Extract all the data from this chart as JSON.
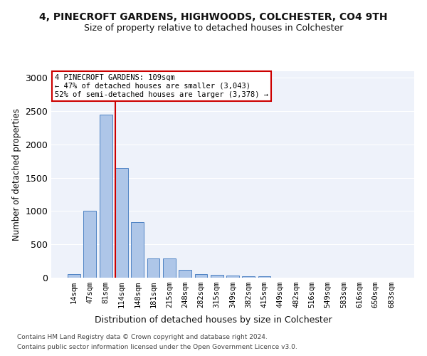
{
  "title_line1": "4, PINECROFT GARDENS, HIGHWOODS, COLCHESTER, CO4 9TH",
  "title_line2": "Size of property relative to detached houses in Colchester",
  "xlabel": "Distribution of detached houses by size in Colchester",
  "ylabel": "Number of detached properties",
  "bar_labels": [
    "14sqm",
    "47sqm",
    "81sqm",
    "114sqm",
    "148sqm",
    "181sqm",
    "215sqm",
    "248sqm",
    "282sqm",
    "315sqm",
    "349sqm",
    "382sqm",
    "415sqm",
    "449sqm",
    "482sqm",
    "516sqm",
    "549sqm",
    "583sqm",
    "616sqm",
    "650sqm",
    "683sqm"
  ],
  "bar_values": [
    55,
    1000,
    2450,
    1650,
    830,
    290,
    285,
    115,
    55,
    45,
    35,
    25,
    25,
    0,
    0,
    0,
    0,
    0,
    0,
    0,
    0
  ],
  "bar_color": "#aec6e8",
  "bar_edgecolor": "#4f83c4",
  "vline_bar_index": 2.6,
  "annotation_text": "4 PINECROFT GARDENS: 109sqm\n← 47% of detached houses are smaller (3,043)\n52% of semi-detached houses are larger (3,378) →",
  "annotation_box_color": "#ffffff",
  "annotation_box_edgecolor": "#cc0000",
  "vline_color": "#cc0000",
  "ylim": [
    0,
    3100
  ],
  "yticks": [
    0,
    500,
    1000,
    1500,
    2000,
    2500,
    3000
  ],
  "footer_line1": "Contains HM Land Registry data © Crown copyright and database right 2024.",
  "footer_line2": "Contains public sector information licensed under the Open Government Licence v3.0.",
  "background_color": "#eef2fa"
}
